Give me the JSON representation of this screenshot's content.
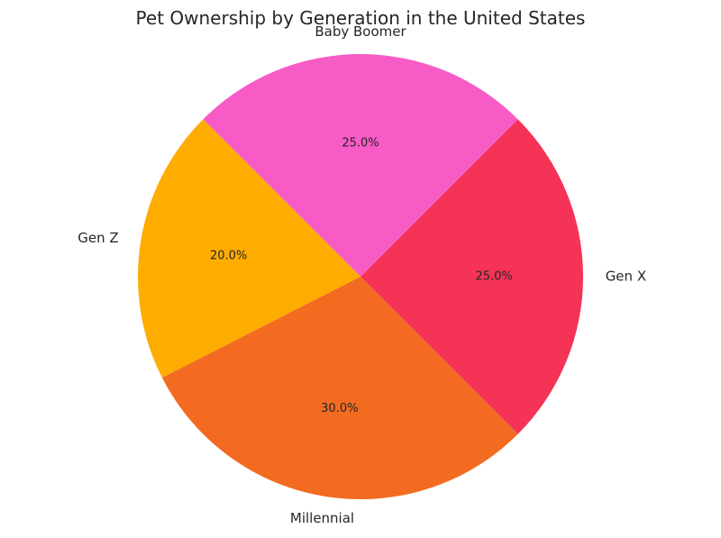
{
  "chart_data": {
    "type": "pie",
    "title": "Pet Ownership by Generation in the United States",
    "categories": [
      "Gen X",
      "Baby Boomer",
      "Gen Z",
      "Millennial"
    ],
    "values": [
      25.0,
      25.0,
      20.0,
      30.0
    ],
    "percent_labels": [
      "25.0%",
      "25.0%",
      "20.0%",
      "30.0%"
    ],
    "colors": [
      "#f43357",
      "#f75bc5",
      "#ffac00",
      "#f26b21"
    ],
    "start_angle_deg": -45,
    "direction": "counterclockwise"
  }
}
